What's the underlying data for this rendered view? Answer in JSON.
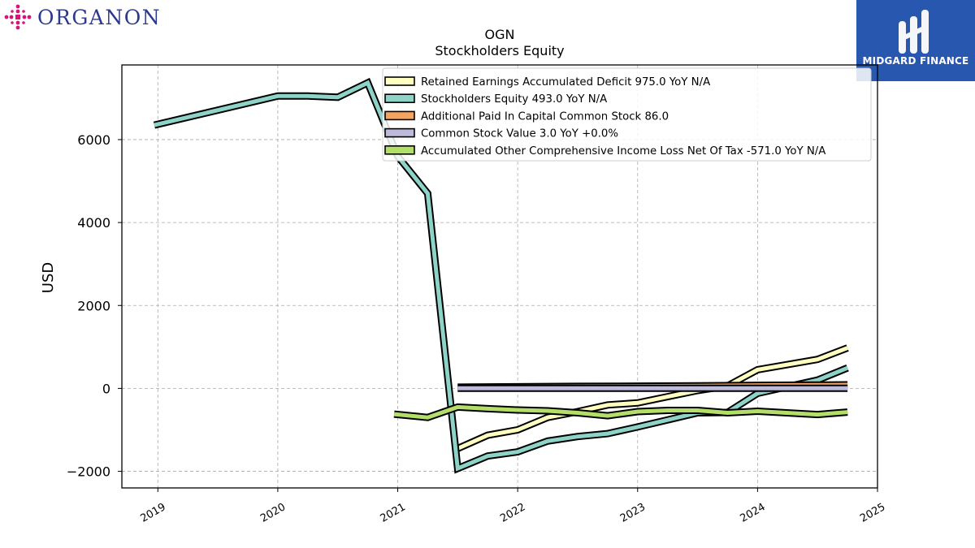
{
  "logos": {
    "left_text": "ORGANON",
    "right_text": "MIDGARD FINANCE"
  },
  "colors": {
    "retained_earnings": "#ffffbf",
    "stockholders_equity": "#8dd3c7",
    "apic": "#f4a460",
    "common_stock": "#bebada",
    "aoci": "#b3de69",
    "right_logo_bg": "#2857b0",
    "left_logo_accent": "#d6157a",
    "left_logo_text": "#2b3a8f"
  },
  "chart_data": {
    "type": "line",
    "title": "OGN",
    "subtitle": "Stockholders  Equity",
    "xlabel": "",
    "ylabel": "USD",
    "xlim": [
      2018.7,
      2025.0
    ],
    "ylim": [
      -2400,
      7800
    ],
    "xticks": [
      2019,
      2020,
      2021,
      2022,
      2023,
      2024,
      2025
    ],
    "yticks": [
      -2000,
      0,
      2000,
      4000,
      6000
    ],
    "ytick_labels": [
      "−2000",
      "0",
      "2000",
      "4000",
      "6000"
    ],
    "grid": true,
    "legend_position": "top-right",
    "series": [
      {
        "name": "Retained Earnings Accumulated Deficit  975.0 YoY N/A",
        "color_key": "retained_earnings",
        "points": [
          [
            2021.5,
            -1450
          ],
          [
            2021.75,
            -1130
          ],
          [
            2022.0,
            -1000
          ],
          [
            2022.25,
            -700
          ],
          [
            2022.5,
            -560
          ],
          [
            2022.75,
            -400
          ],
          [
            2023.0,
            -350
          ],
          [
            2023.25,
            -200
          ],
          [
            2023.5,
            -50
          ],
          [
            2023.75,
            60
          ],
          [
            2024.0,
            450
          ],
          [
            2024.5,
            700
          ],
          [
            2024.75,
            975
          ]
        ]
      },
      {
        "name": "Stockholders Equity  493.0 YoY N/A",
        "color_key": "stockholders_equity",
        "points": [
          [
            2018.97,
            6350
          ],
          [
            2020.0,
            7050
          ],
          [
            2020.25,
            7050
          ],
          [
            2020.5,
            7020
          ],
          [
            2020.75,
            7370
          ],
          [
            2021.0,
            5600
          ],
          [
            2021.25,
            4700
          ],
          [
            2021.5,
            -1930
          ],
          [
            2021.75,
            -1630
          ],
          [
            2022.0,
            -1530
          ],
          [
            2022.25,
            -1270
          ],
          [
            2022.5,
            -1160
          ],
          [
            2022.75,
            -1090
          ],
          [
            2023.0,
            -930
          ],
          [
            2023.25,
            -760
          ],
          [
            2023.5,
            -590
          ],
          [
            2023.75,
            -580
          ],
          [
            2024.0,
            -120
          ],
          [
            2024.5,
            200
          ],
          [
            2024.75,
            493
          ]
        ]
      },
      {
        "name": "Additional Paid In Capital Common Stock  86.0",
        "color_key": "apic",
        "points": [
          [
            2021.5,
            30
          ],
          [
            2022.0,
            40
          ],
          [
            2022.5,
            50
          ],
          [
            2023.0,
            55
          ],
          [
            2023.5,
            60
          ],
          [
            2024.0,
            75
          ],
          [
            2024.5,
            80
          ],
          [
            2024.75,
            86
          ]
        ]
      },
      {
        "name": "Common Stock Value  3.0 YoY +0.0%",
        "color_key": "common_stock",
        "points": [
          [
            2021.5,
            3
          ],
          [
            2022.0,
            3
          ],
          [
            2022.5,
            3
          ],
          [
            2023.0,
            3
          ],
          [
            2023.5,
            3
          ],
          [
            2024.0,
            3
          ],
          [
            2024.5,
            3
          ],
          [
            2024.75,
            3
          ]
        ]
      },
      {
        "name": "Accumulated Other Comprehensive Income Loss Net Of Tax  -571.0 YoY N/A",
        "color_key": "aoci",
        "points": [
          [
            2020.97,
            -620
          ],
          [
            2021.25,
            -700
          ],
          [
            2021.5,
            -450
          ],
          [
            2021.75,
            -490
          ],
          [
            2022.0,
            -520
          ],
          [
            2022.25,
            -540
          ],
          [
            2022.5,
            -590
          ],
          [
            2022.75,
            -660
          ],
          [
            2023.0,
            -560
          ],
          [
            2023.25,
            -530
          ],
          [
            2023.5,
            -530
          ],
          [
            2023.75,
            -590
          ],
          [
            2024.0,
            -550
          ],
          [
            2024.5,
            -630
          ],
          [
            2024.75,
            -571
          ]
        ]
      }
    ]
  }
}
